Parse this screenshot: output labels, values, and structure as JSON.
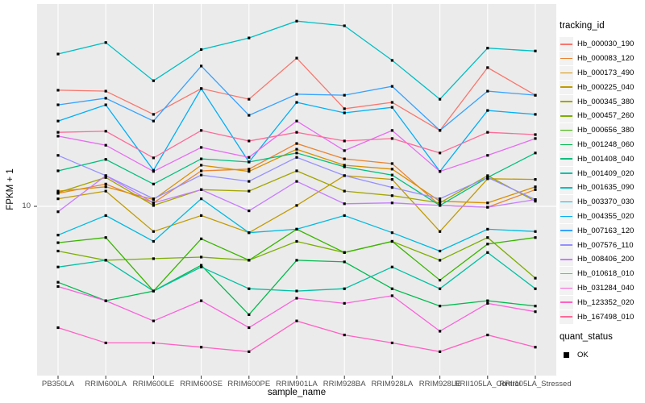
{
  "figure": {
    "y_axis": {
      "title": "FPKM + 1",
      "break_label": "10",
      "break_value": 10
    },
    "x_axis": {
      "title": "sample_name"
    },
    "legend": {
      "tracking_title": "tracking_id",
      "quant_title": "quant_status",
      "quant_items": [
        {
          "label": "OK"
        }
      ]
    }
  },
  "chart_data": {
    "type": "line",
    "title": "",
    "xlabel": "sample_name",
    "ylabel": "FPKM + 1",
    "y_scale": "log10",
    "y_breaks": [
      10
    ],
    "ylim_approx": [
      1.8,
      100
    ],
    "grid": true,
    "legend_position": "right",
    "point_shape": "filled-square",
    "point_color": "#000000",
    "quant_status_all": "OK",
    "categories": [
      "PB350LA",
      "RRIM600LA",
      "RRIM600LE",
      "RRIM600SE",
      "RRIM600PE",
      "RRIM901LA",
      "RRIM928BA",
      "RRIM928LA",
      "RRIM928LE",
      "RRII105LA_Control",
      "RRII105LA_Stressed"
    ],
    "series": [
      {
        "name": "Hb_000030_190",
        "color": "#F8766D",
        "values": [
          37.7,
          37.3,
          28.6,
          38.4,
          34.0,
          54.4,
          30.5,
          32.8,
          23.8,
          48.8,
          35.6
        ]
      },
      {
        "name": "Hb_000083_120",
        "color": "#EA8331",
        "values": [
          11.6,
          12.9,
          10.4,
          15.0,
          15.3,
          20.5,
          17.2,
          16.3,
          10.1,
          9.9,
          12.1
        ]
      },
      {
        "name": "Hb_000173_490",
        "color": "#D89000",
        "values": [
          11.9,
          12.5,
          10.8,
          16.0,
          14.9,
          19.2,
          16.0,
          15.3,
          10.6,
          10.4,
          12.5
        ]
      },
      {
        "name": "Hb_000225_040",
        "color": "#C09B00",
        "values": [
          10.9,
          11.9,
          7.5,
          9.0,
          7.4,
          10.1,
          14.2,
          13.6,
          7.5,
          13.7,
          13.6
        ]
      },
      {
        "name": "Hb_000345_380",
        "color": "#A3A500",
        "values": [
          11.7,
          13.9,
          10.1,
          12.1,
          11.9,
          15.0,
          11.9,
          11.3,
          10.4,
          14.2,
          10.6
        ]
      },
      {
        "name": "Hb_000457_260",
        "color": "#7CAE00",
        "values": [
          6.0,
          5.4,
          5.5,
          5.6,
          5.4,
          6.7,
          5.9,
          6.7,
          5.4,
          7.0,
          4.4
        ]
      },
      {
        "name": "Hb_000656_380",
        "color": "#39B600",
        "values": [
          6.6,
          7.0,
          3.8,
          6.9,
          5.4,
          7.7,
          5.9,
          6.7,
          4.3,
          6.5,
          7.0
        ]
      },
      {
        "name": "Hb_001248_060",
        "color": "#00BB4E",
        "values": [
          4.2,
          3.4,
          3.8,
          5.1,
          2.9,
          5.4,
          5.3,
          3.9,
          3.2,
          3.4,
          3.2
        ]
      },
      {
        "name": "Hb_001408_040",
        "color": "#00BF7D",
        "values": [
          15.0,
          17.1,
          12.9,
          17.2,
          16.6,
          18.4,
          15.7,
          14.3,
          10.1,
          13.9,
          18.4
        ]
      },
      {
        "name": "Hb_001409_020",
        "color": "#00C1A3",
        "values": [
          5.0,
          5.4,
          3.8,
          5.0,
          3.9,
          3.8,
          3.9,
          5.0,
          3.9,
          5.9,
          3.9
        ]
      },
      {
        "name": "Hb_001635_090",
        "color": "#00BFC4",
        "values": [
          57.0,
          65.0,
          42.0,
          60.0,
          68.5,
          83.0,
          78.7,
          53.0,
          34.0,
          61.0,
          59.0
        ]
      },
      {
        "name": "Hb_003370_030",
        "color": "#00BAE0",
        "values": [
          7.2,
          9.0,
          6.7,
          10.9,
          7.4,
          7.7,
          9.0,
          7.4,
          6.0,
          7.7,
          7.5
        ]
      },
      {
        "name": "Hb_004355_020",
        "color": "#00B0F6",
        "values": [
          26.5,
          31.9,
          15.1,
          38.4,
          16.6,
          32.8,
          29.1,
          31.0,
          14.9,
          29.9,
          28.6
        ]
      },
      {
        "name": "Hb_007163_120",
        "color": "#35A2FF",
        "values": [
          31.9,
          34.4,
          26.5,
          49.7,
          28.3,
          36.0,
          35.6,
          39.4,
          23.8,
          37.3,
          35.6
        ]
      },
      {
        "name": "Hb_007576_110",
        "color": "#9590FF",
        "values": [
          17.9,
          14.2,
          10.9,
          14.3,
          13.3,
          17.5,
          14.2,
          12.4,
          10.9,
          13.9,
          10.8
        ]
      },
      {
        "name": "Hb_008406_200",
        "color": "#C77CFF",
        "values": [
          9.4,
          14.2,
          10.4,
          12.1,
          9.5,
          13.3,
          10.3,
          10.4,
          10.1,
          9.9,
          10.8
        ]
      },
      {
        "name": "Hb_010618_010",
        "color": "#E76BF3",
        "values": [
          22.3,
          20.1,
          14.9,
          19.6,
          17.5,
          26.5,
          18.9,
          23.8,
          14.9,
          17.9,
          21.7
        ]
      },
      {
        "name": "Hb_031284_040",
        "color": "#FA62DB",
        "values": [
          4.0,
          3.4,
          2.7,
          3.4,
          2.5,
          3.5,
          3.3,
          3.6,
          2.4,
          3.3,
          3.0
        ]
      },
      {
        "name": "Hb_123352_020",
        "color": "#FF61C3",
        "values": [
          2.5,
          2.1,
          2.1,
          2.0,
          1.9,
          2.7,
          2.3,
          2.1,
          1.9,
          2.3,
          2.0
        ]
      },
      {
        "name": "Hb_167498_010",
        "color": "#FF6A98",
        "values": [
          23.3,
          23.6,
          17.4,
          23.8,
          21.1,
          23.3,
          21.1,
          21.7,
          18.4,
          23.3,
          22.7
        ]
      }
    ]
  },
  "style": {
    "panel_bg": "#EBEBEB",
    "grid_color": "#FFFFFF",
    "tick_color": "#333333",
    "tick_label_color": "#4D4D4D",
    "key_bg": "#F2F2F2",
    "point_color": "#000000"
  }
}
